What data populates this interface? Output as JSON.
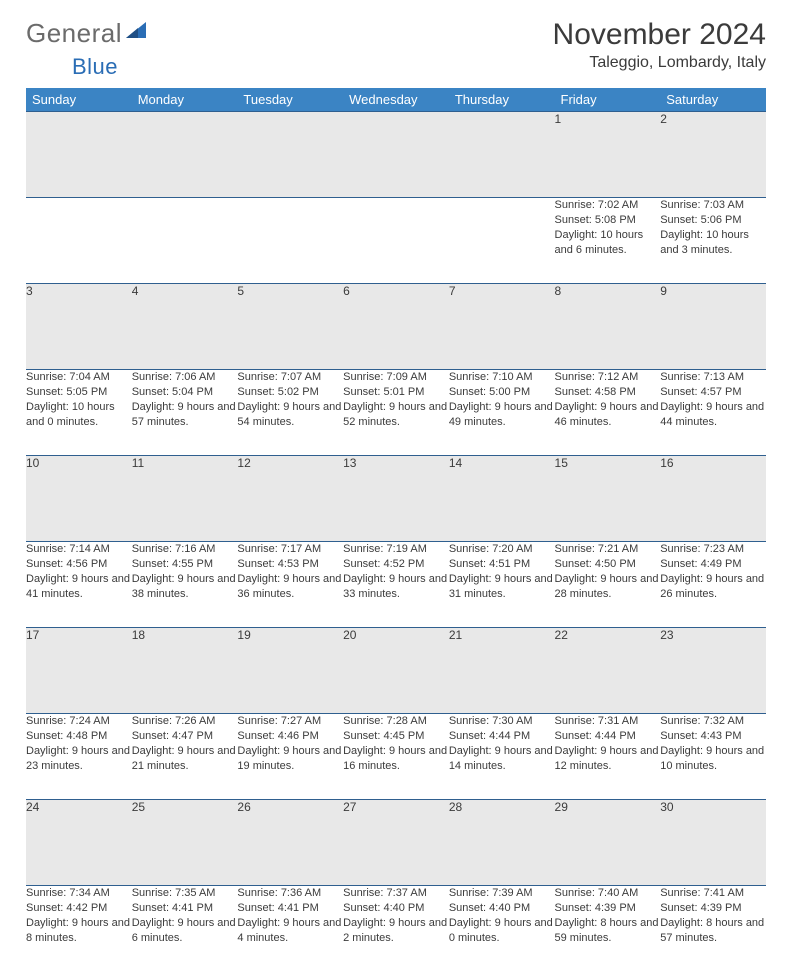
{
  "brand": {
    "word1": "General",
    "word2": "Blue"
  },
  "title": "November 2024",
  "location": "Taleggio, Lombardy, Italy",
  "colors": {
    "header_bg": "#3b84c4",
    "header_fg": "#ffffff",
    "daynum_bg": "#e8e8e8",
    "rule": "#2f5f8f",
    "text": "#3b3b3b",
    "brand_gray": "#6b6b6b",
    "brand_blue": "#2a6db5"
  },
  "day_headers": [
    "Sunday",
    "Monday",
    "Tuesday",
    "Wednesday",
    "Thursday",
    "Friday",
    "Saturday"
  ],
  "weeks": [
    [
      {
        "n": "",
        "sunrise": "",
        "sunset": "",
        "daylight": ""
      },
      {
        "n": "",
        "sunrise": "",
        "sunset": "",
        "daylight": ""
      },
      {
        "n": "",
        "sunrise": "",
        "sunset": "",
        "daylight": ""
      },
      {
        "n": "",
        "sunrise": "",
        "sunset": "",
        "daylight": ""
      },
      {
        "n": "",
        "sunrise": "",
        "sunset": "",
        "daylight": ""
      },
      {
        "n": "1",
        "sunrise": "Sunrise: 7:02 AM",
        "sunset": "Sunset: 5:08 PM",
        "daylight": "Daylight: 10 hours and 6 minutes."
      },
      {
        "n": "2",
        "sunrise": "Sunrise: 7:03 AM",
        "sunset": "Sunset: 5:06 PM",
        "daylight": "Daylight: 10 hours and 3 minutes."
      }
    ],
    [
      {
        "n": "3",
        "sunrise": "Sunrise: 7:04 AM",
        "sunset": "Sunset: 5:05 PM",
        "daylight": "Daylight: 10 hours and 0 minutes."
      },
      {
        "n": "4",
        "sunrise": "Sunrise: 7:06 AM",
        "sunset": "Sunset: 5:04 PM",
        "daylight": "Daylight: 9 hours and 57 minutes."
      },
      {
        "n": "5",
        "sunrise": "Sunrise: 7:07 AM",
        "sunset": "Sunset: 5:02 PM",
        "daylight": "Daylight: 9 hours and 54 minutes."
      },
      {
        "n": "6",
        "sunrise": "Sunrise: 7:09 AM",
        "sunset": "Sunset: 5:01 PM",
        "daylight": "Daylight: 9 hours and 52 minutes."
      },
      {
        "n": "7",
        "sunrise": "Sunrise: 7:10 AM",
        "sunset": "Sunset: 5:00 PM",
        "daylight": "Daylight: 9 hours and 49 minutes."
      },
      {
        "n": "8",
        "sunrise": "Sunrise: 7:12 AM",
        "sunset": "Sunset: 4:58 PM",
        "daylight": "Daylight: 9 hours and 46 minutes."
      },
      {
        "n": "9",
        "sunrise": "Sunrise: 7:13 AM",
        "sunset": "Sunset: 4:57 PM",
        "daylight": "Daylight: 9 hours and 44 minutes."
      }
    ],
    [
      {
        "n": "10",
        "sunrise": "Sunrise: 7:14 AM",
        "sunset": "Sunset: 4:56 PM",
        "daylight": "Daylight: 9 hours and 41 minutes."
      },
      {
        "n": "11",
        "sunrise": "Sunrise: 7:16 AM",
        "sunset": "Sunset: 4:55 PM",
        "daylight": "Daylight: 9 hours and 38 minutes."
      },
      {
        "n": "12",
        "sunrise": "Sunrise: 7:17 AM",
        "sunset": "Sunset: 4:53 PM",
        "daylight": "Daylight: 9 hours and 36 minutes."
      },
      {
        "n": "13",
        "sunrise": "Sunrise: 7:19 AM",
        "sunset": "Sunset: 4:52 PM",
        "daylight": "Daylight: 9 hours and 33 minutes."
      },
      {
        "n": "14",
        "sunrise": "Sunrise: 7:20 AM",
        "sunset": "Sunset: 4:51 PM",
        "daylight": "Daylight: 9 hours and 31 minutes."
      },
      {
        "n": "15",
        "sunrise": "Sunrise: 7:21 AM",
        "sunset": "Sunset: 4:50 PM",
        "daylight": "Daylight: 9 hours and 28 minutes."
      },
      {
        "n": "16",
        "sunrise": "Sunrise: 7:23 AM",
        "sunset": "Sunset: 4:49 PM",
        "daylight": "Daylight: 9 hours and 26 minutes."
      }
    ],
    [
      {
        "n": "17",
        "sunrise": "Sunrise: 7:24 AM",
        "sunset": "Sunset: 4:48 PM",
        "daylight": "Daylight: 9 hours and 23 minutes."
      },
      {
        "n": "18",
        "sunrise": "Sunrise: 7:26 AM",
        "sunset": "Sunset: 4:47 PM",
        "daylight": "Daylight: 9 hours and 21 minutes."
      },
      {
        "n": "19",
        "sunrise": "Sunrise: 7:27 AM",
        "sunset": "Sunset: 4:46 PM",
        "daylight": "Daylight: 9 hours and 19 minutes."
      },
      {
        "n": "20",
        "sunrise": "Sunrise: 7:28 AM",
        "sunset": "Sunset: 4:45 PM",
        "daylight": "Daylight: 9 hours and 16 minutes."
      },
      {
        "n": "21",
        "sunrise": "Sunrise: 7:30 AM",
        "sunset": "Sunset: 4:44 PM",
        "daylight": "Daylight: 9 hours and 14 minutes."
      },
      {
        "n": "22",
        "sunrise": "Sunrise: 7:31 AM",
        "sunset": "Sunset: 4:44 PM",
        "daylight": "Daylight: 9 hours and 12 minutes."
      },
      {
        "n": "23",
        "sunrise": "Sunrise: 7:32 AM",
        "sunset": "Sunset: 4:43 PM",
        "daylight": "Daylight: 9 hours and 10 minutes."
      }
    ],
    [
      {
        "n": "24",
        "sunrise": "Sunrise: 7:34 AM",
        "sunset": "Sunset: 4:42 PM",
        "daylight": "Daylight: 9 hours and 8 minutes."
      },
      {
        "n": "25",
        "sunrise": "Sunrise: 7:35 AM",
        "sunset": "Sunset: 4:41 PM",
        "daylight": "Daylight: 9 hours and 6 minutes."
      },
      {
        "n": "26",
        "sunrise": "Sunrise: 7:36 AM",
        "sunset": "Sunset: 4:41 PM",
        "daylight": "Daylight: 9 hours and 4 minutes."
      },
      {
        "n": "27",
        "sunrise": "Sunrise: 7:37 AM",
        "sunset": "Sunset: 4:40 PM",
        "daylight": "Daylight: 9 hours and 2 minutes."
      },
      {
        "n": "28",
        "sunrise": "Sunrise: 7:39 AM",
        "sunset": "Sunset: 4:40 PM",
        "daylight": "Daylight: 9 hours and 0 minutes."
      },
      {
        "n": "29",
        "sunrise": "Sunrise: 7:40 AM",
        "sunset": "Sunset: 4:39 PM",
        "daylight": "Daylight: 8 hours and 59 minutes."
      },
      {
        "n": "30",
        "sunrise": "Sunrise: 7:41 AM",
        "sunset": "Sunset: 4:39 PM",
        "daylight": "Daylight: 8 hours and 57 minutes."
      }
    ]
  ]
}
